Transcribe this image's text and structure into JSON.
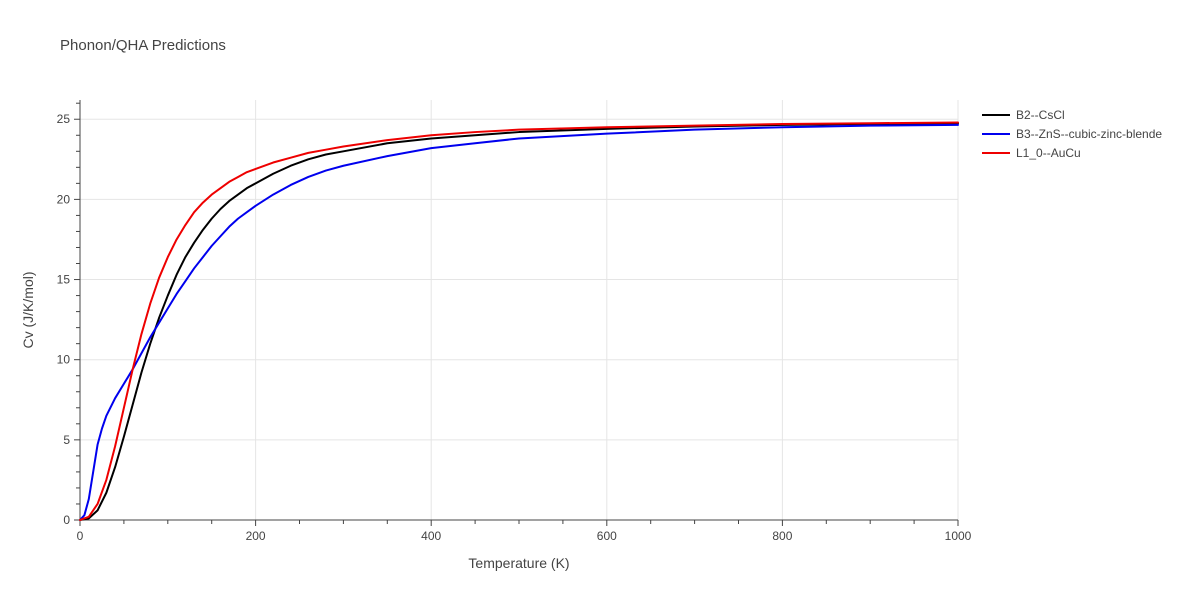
{
  "chart_data": {
    "type": "line",
    "title": "Phonon/QHA Predictions",
    "xlabel": "Temperature (K)",
    "ylabel": "Cv (J/K/mol)",
    "xlim": [
      0,
      1000
    ],
    "ylim": [
      0,
      26.2
    ],
    "xticks": [
      0,
      200,
      400,
      600,
      800,
      1000
    ],
    "xtick_labels": [
      "0",
      "200",
      "400",
      "600",
      "800",
      "1000"
    ],
    "yticks": [
      0,
      5,
      10,
      15,
      20,
      25
    ],
    "ytick_labels": [
      "0",
      "5",
      "10",
      "15",
      "20",
      "25"
    ],
    "grid": true,
    "legend_position": "top-right-outside",
    "series": [
      {
        "name": "B2--CsCl",
        "color": "#000000",
        "x": [
          0,
          10,
          20,
          30,
          40,
          50,
          60,
          70,
          80,
          90,
          100,
          110,
          120,
          130,
          140,
          150,
          160,
          170,
          180,
          190,
          200,
          220,
          240,
          260,
          280,
          300,
          350,
          400,
          450,
          500,
          600,
          700,
          800,
          900,
          1000
        ],
        "y": [
          0,
          0.1,
          0.6,
          1.7,
          3.3,
          5.2,
          7.2,
          9.2,
          11.0,
          12.6,
          14.0,
          15.3,
          16.4,
          17.3,
          18.1,
          18.8,
          19.4,
          19.9,
          20.3,
          20.7,
          21.0,
          21.6,
          22.1,
          22.5,
          22.8,
          23.0,
          23.5,
          23.8,
          24.0,
          24.2,
          24.4,
          24.55,
          24.65,
          24.7,
          24.75
        ]
      },
      {
        "name": "B3--ZnS--cubic-zinc-blende",
        "color": "#0000ee",
        "x": [
          0,
          5,
          10,
          15,
          20,
          25,
          30,
          40,
          50,
          60,
          70,
          80,
          90,
          100,
          110,
          120,
          130,
          140,
          150,
          160,
          170,
          180,
          190,
          200,
          220,
          240,
          260,
          280,
          300,
          350,
          400,
          450,
          500,
          600,
          700,
          800,
          900,
          1000
        ],
        "y": [
          0,
          0.3,
          1.3,
          3.0,
          4.7,
          5.7,
          6.5,
          7.6,
          8.5,
          9.4,
          10.4,
          11.4,
          12.3,
          13.2,
          14.1,
          14.9,
          15.7,
          16.4,
          17.1,
          17.7,
          18.3,
          18.8,
          19.2,
          19.6,
          20.3,
          20.9,
          21.4,
          21.8,
          22.1,
          22.7,
          23.2,
          23.5,
          23.8,
          24.1,
          24.35,
          24.5,
          24.6,
          24.65
        ]
      },
      {
        "name": "L1_0--AuCu",
        "color": "#ee0000",
        "x": [
          0,
          10,
          20,
          30,
          40,
          50,
          60,
          70,
          80,
          90,
          100,
          110,
          120,
          130,
          140,
          150,
          160,
          170,
          180,
          190,
          200,
          220,
          240,
          260,
          280,
          300,
          350,
          400,
          450,
          500,
          600,
          700,
          800,
          900,
          1000
        ],
        "y": [
          0,
          0.2,
          1.0,
          2.5,
          4.6,
          7.0,
          9.4,
          11.6,
          13.5,
          15.1,
          16.4,
          17.5,
          18.4,
          19.2,
          19.8,
          20.3,
          20.7,
          21.1,
          21.4,
          21.7,
          21.9,
          22.3,
          22.6,
          22.9,
          23.1,
          23.3,
          23.7,
          24.0,
          24.2,
          24.35,
          24.5,
          24.6,
          24.7,
          24.75,
          24.8
        ]
      }
    ]
  }
}
